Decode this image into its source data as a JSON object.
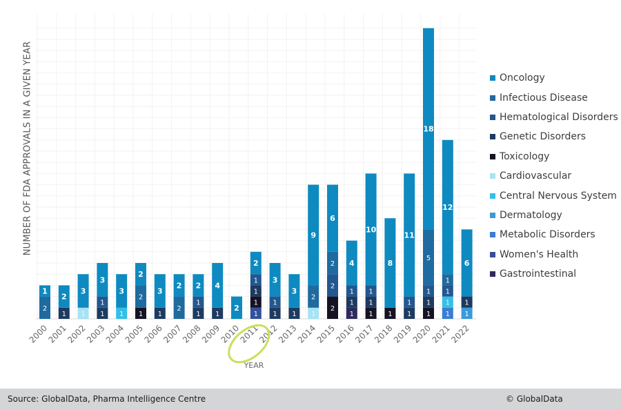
{
  "chart_data": {
    "type": "bar",
    "stacked": true,
    "ylabel": "NUMBER OF FDA APPROVALS IN A GIVEN YEAR",
    "xlabel": "YEAR",
    "ylim": [
      0,
      26
    ],
    "highlight_category": "2011",
    "categories": [
      "2000",
      "2001",
      "2002",
      "2003",
      "2004",
      "2005",
      "2006",
      "2007",
      "2008",
      "2009",
      "2010",
      "2011",
      "2012",
      "2013",
      "2014",
      "2015",
      "2016",
      "2017",
      "2018",
      "2019",
      "2020",
      "2021",
      "2022"
    ],
    "series": [
      {
        "name": "Gastrointestinal",
        "color": "#2d2a5c",
        "values": [
          0,
          0,
          0,
          0,
          0,
          0,
          0,
          0,
          0,
          0,
          0,
          0,
          0,
          0,
          0,
          0,
          1,
          0,
          0,
          0,
          0,
          0,
          0
        ]
      },
      {
        "name": "Women's Health",
        "color": "#33509a",
        "values": [
          0,
          0,
          0,
          0,
          0,
          0,
          0,
          0,
          0,
          0,
          0,
          1,
          0,
          0,
          0,
          0,
          0,
          0,
          0,
          0,
          0,
          0,
          0
        ]
      },
      {
        "name": "Metabolic Disorders",
        "color": "#3a7dd1",
        "values": [
          0,
          0,
          0,
          0,
          0,
          0,
          0,
          0,
          0,
          0,
          0,
          0,
          0,
          0,
          0,
          0,
          0,
          0,
          0,
          0,
          0,
          1,
          0
        ]
      },
      {
        "name": "Dermatology",
        "color": "#3b9ad9",
        "values": [
          0,
          0,
          0,
          0,
          0,
          0,
          0,
          0,
          0,
          0,
          0,
          0,
          0,
          0,
          0,
          0,
          0,
          0,
          0,
          0,
          0,
          0,
          1
        ]
      },
      {
        "name": "Central Nervous System",
        "color": "#33bfe8",
        "values": [
          0,
          0,
          0,
          0,
          1,
          0,
          0,
          0,
          0,
          0,
          0,
          0,
          0,
          0,
          0,
          0,
          0,
          0,
          0,
          0,
          0,
          1,
          0
        ]
      },
      {
        "name": "Cardiovascular",
        "color": "#a8e2f4",
        "values": [
          0,
          0,
          1,
          0,
          0,
          0,
          0,
          0,
          0,
          0,
          0,
          0,
          0,
          0,
          1,
          0,
          0,
          0,
          0,
          0,
          0,
          0,
          0
        ]
      },
      {
        "name": "Toxicology",
        "color": "#151323",
        "values": [
          0,
          0,
          0,
          0,
          0,
          1,
          0,
          0,
          0,
          0,
          0,
          1,
          0,
          0,
          0,
          2,
          0,
          1,
          1,
          0,
          1,
          0,
          0
        ]
      },
      {
        "name": "Genetic Disorders",
        "color": "#1e3a5f",
        "values": [
          0,
          1,
          0,
          1,
          0,
          0,
          1,
          0,
          1,
          1,
          0,
          1,
          1,
          1,
          0,
          0,
          1,
          1,
          0,
          1,
          1,
          0,
          1
        ]
      },
      {
        "name": "Hematological Disorders",
        "color": "#23578f",
        "values": [
          0,
          0,
          0,
          1,
          0,
          0,
          0,
          0,
          1,
          0,
          0,
          1,
          1,
          0,
          0,
          2,
          1,
          1,
          0,
          1,
          1,
          1,
          0
        ]
      },
      {
        "name": "Infectious Disease",
        "color": "#1f6a9f",
        "values": [
          2,
          0,
          0,
          0,
          0,
          2,
          0,
          2,
          0,
          0,
          0,
          0,
          0,
          0,
          2,
          2,
          0,
          0,
          0,
          0,
          5,
          1,
          0
        ]
      },
      {
        "name": "Oncology",
        "color": "#0e8ac0",
        "values": [
          1,
          2,
          3,
          3,
          3,
          2,
          3,
          2,
          2,
          4,
          2,
          2,
          3,
          3,
          9,
          6,
          4,
          10,
          8,
          11,
          18,
          12,
          6
        ]
      }
    ],
    "legend_order": [
      "Oncology",
      "Infectious Disease",
      "Hematological Disorders",
      "Genetic Disorders",
      "Toxicology",
      "Cardiovascular",
      "Central Nervous System",
      "Dermatology",
      "Metabolic Disorders",
      "Women's Health",
      "Gastrointestinal"
    ]
  },
  "footer": {
    "source": "Source: GlobalData, Pharma Intelligence Centre",
    "copyright": "© GlobalData"
  }
}
